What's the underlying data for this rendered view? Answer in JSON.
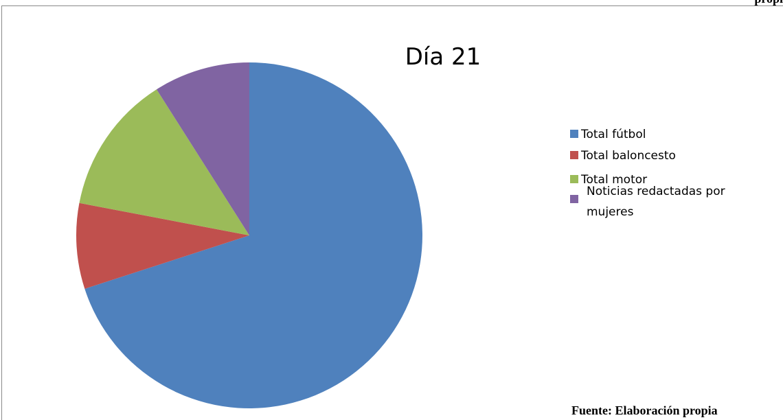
{
  "page_header": "propi",
  "chart_data": {
    "type": "pie",
    "title": "Día 21",
    "categories": [
      "Total fútbol",
      "Total baloncesto",
      "Total motor",
      "Noticias redactadas por mujeres"
    ],
    "values": [
      70,
      8,
      13,
      9
    ],
    "colors": [
      "#4f81bd",
      "#c0504d",
      "#9bbb59",
      "#8064a2"
    ],
    "legend": "right"
  },
  "source_note": "Fuente: Elaboración propia"
}
